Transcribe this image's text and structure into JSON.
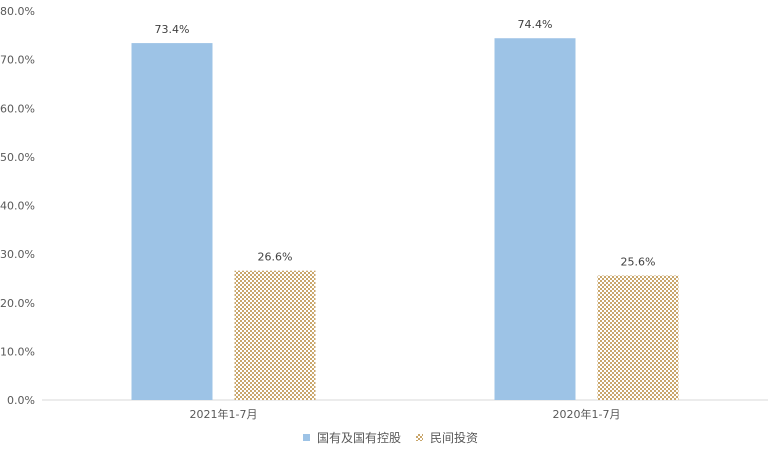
{
  "chart_data": {
    "type": "bar",
    "categories": [
      "2021年1-7月",
      "2020年1-7月"
    ],
    "series": [
      {
        "name": "国有及国有控股",
        "values": [
          73.4,
          74.4
        ],
        "labels": [
          "73.4%",
          "74.4%"
        ],
        "color": "#9dc3e6",
        "fill": "solid"
      },
      {
        "name": "民间投资",
        "values": [
          26.6,
          25.6
        ],
        "labels": [
          "26.6%",
          "25.6%"
        ],
        "color": "#c9a66b",
        "fill": "crosshatch"
      }
    ],
    "title": "",
    "xlabel": "",
    "ylabel": "",
    "ylim": [
      0,
      80
    ],
    "yticks": [
      0,
      10,
      20,
      30,
      40,
      50,
      60,
      70,
      80
    ],
    "ytick_labels": [
      "0.0%",
      "10.0%",
      "20.0%",
      "30.0%",
      "40.0%",
      "50.0%",
      "60.0%",
      "70.0%",
      "80.0%"
    ],
    "grid": false,
    "legend_position": "bottom",
    "axis_color": "#d9d9d9"
  }
}
